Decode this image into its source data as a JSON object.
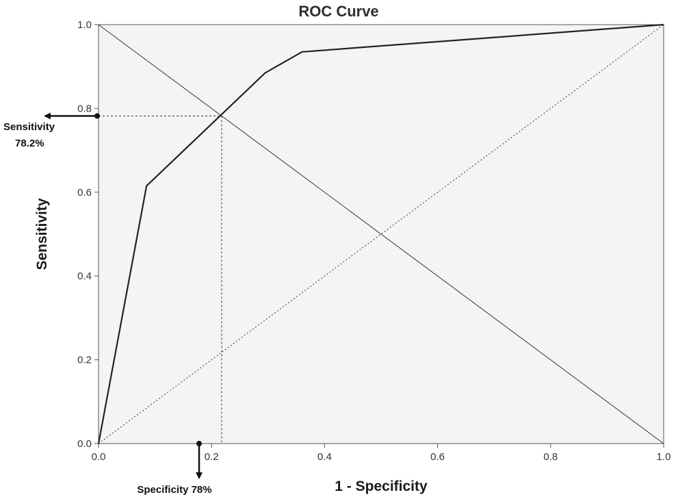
{
  "chart_data": {
    "type": "line",
    "title": "ROC Curve",
    "xlabel": "1 - Specificity",
    "ylabel": "Sensitivity",
    "xlim": [
      0,
      1
    ],
    "ylim": [
      0,
      1
    ],
    "x_ticks": [
      "0.0",
      "0.2",
      "0.4",
      "0.6",
      "0.8",
      "1.0"
    ],
    "y_ticks": [
      "0.0",
      "0.2",
      "0.4",
      "0.6",
      "0.8",
      "1.0"
    ],
    "grid": false,
    "series": [
      {
        "x": [
          0.0,
          0.085,
          0.295,
          0.36,
          1.0
        ],
        "y": [
          0.0,
          0.615,
          0.885,
          0.935,
          1.0
        ]
      }
    ],
    "reference_lines": [
      {
        "style": "dotted",
        "x": [
          0,
          1
        ],
        "y": [
          0,
          1
        ]
      },
      {
        "style": "solid",
        "x": [
          0,
          1
        ],
        "y": [
          1,
          0
        ]
      }
    ],
    "operating_point": {
      "x": 0.218,
      "y": 0.782
    },
    "annotations": {
      "sensitivity_label": "Sensitivity",
      "sensitivity_value": "78.2%",
      "specificity_label": "Specificity 78%"
    },
    "colors": {
      "plot_background": "#f3f5f3",
      "curve": "#222222",
      "reference": "#333333"
    }
  }
}
